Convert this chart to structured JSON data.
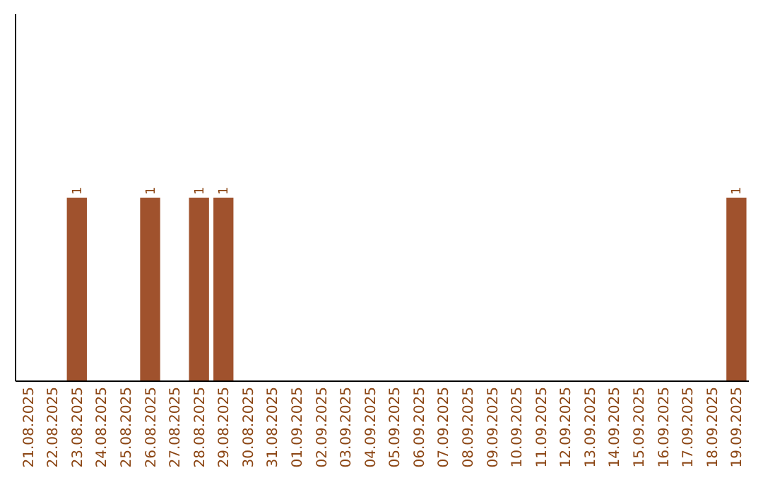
{
  "chart_data": {
    "type": "bar",
    "categories": [
      "21.08.2025",
      "22.08.2025",
      "23.08.2025",
      "24.08.2025",
      "25.08.2025",
      "26.08.2025",
      "27.08.2025",
      "28.08.2025",
      "29.08.2025",
      "30.08.2025",
      "31.08.2025",
      "01.09.2025",
      "02.09.2025",
      "03.09.2025",
      "04.09.2025",
      "05.09.2025",
      "06.09.2025",
      "07.09.2025",
      "08.09.2025",
      "09.09.2025",
      "10.09.2025",
      "11.09.2025",
      "12.09.2025",
      "13.09.2025",
      "14.09.2025",
      "15.09.2025",
      "16.09.2025",
      "17.09.2025",
      "18.09.2025",
      "19.09.2025"
    ],
    "values": [
      0,
      0,
      1,
      0,
      0,
      1,
      0,
      1,
      1,
      0,
      0,
      0,
      0,
      0,
      0,
      0,
      0,
      0,
      0,
      0,
      0,
      0,
      0,
      0,
      0,
      0,
      0,
      0,
      0,
      1
    ],
    "value_labels": [
      null,
      null,
      "1",
      null,
      null,
      "1",
      null,
      "1",
      "1",
      null,
      null,
      null,
      null,
      null,
      null,
      null,
      null,
      null,
      null,
      null,
      null,
      null,
      null,
      null,
      null,
      null,
      null,
      null,
      null,
      "1"
    ],
    "color": "#a0522d",
    "ylim": [
      0,
      2
    ],
    "tick_labels": "x"
  }
}
